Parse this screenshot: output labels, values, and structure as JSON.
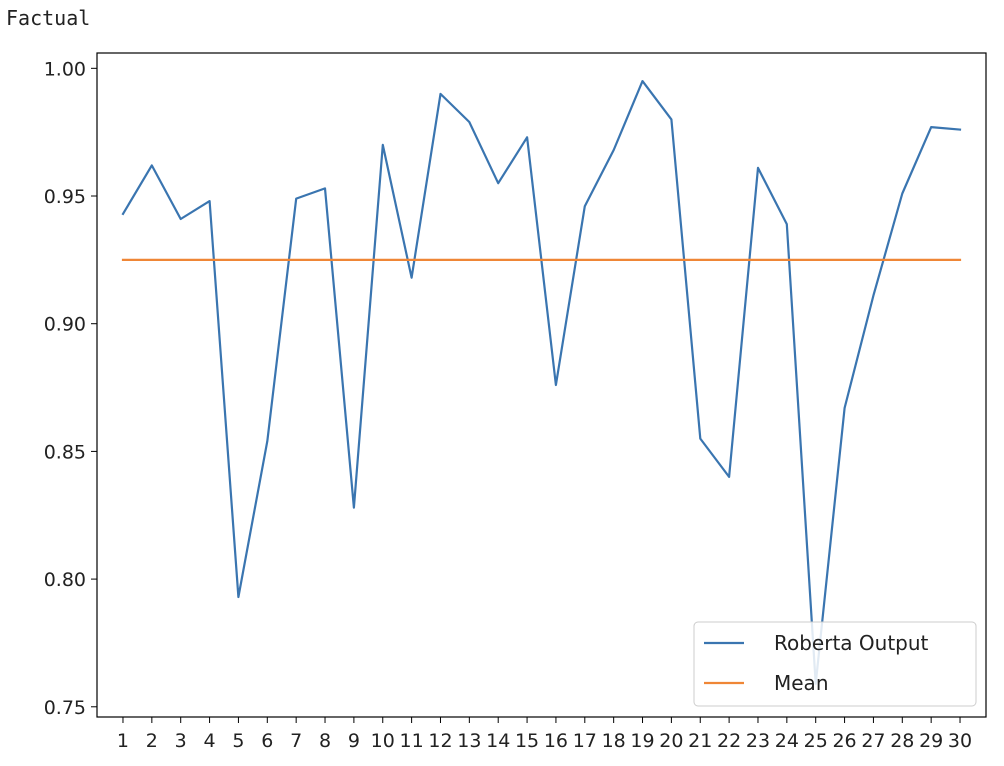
{
  "page_label": "Factual",
  "chart_data": {
    "type": "line",
    "title": "",
    "xlabel": "",
    "ylabel": "",
    "x": [
      1,
      2,
      3,
      4,
      5,
      6,
      7,
      8,
      9,
      10,
      11,
      12,
      13,
      14,
      15,
      16,
      17,
      18,
      19,
      20,
      21,
      22,
      23,
      24,
      25,
      26,
      27,
      28,
      29,
      30
    ],
    "xticks": [
      "1",
      "2",
      "3",
      "4",
      "5",
      "6",
      "7",
      "8",
      "9",
      "10",
      "11",
      "12",
      "13",
      "14",
      "15",
      "16",
      "17",
      "18",
      "19",
      "20",
      "21",
      "22",
      "23",
      "24",
      "25",
      "26",
      "27",
      "28",
      "29",
      "30"
    ],
    "yticks": [
      "0.75",
      "0.80",
      "0.85",
      "0.90",
      "0.95",
      "1.00"
    ],
    "xlim": [
      0.1,
      30.9
    ],
    "ylim": [
      0.746,
      1.006
    ],
    "grid": false,
    "legend_position": "lower right",
    "series": [
      {
        "name": "Roberta Output",
        "color": "#3a75b0",
        "values": [
          0.943,
          0.962,
          0.941,
          0.948,
          0.793,
          0.854,
          0.949,
          0.953,
          0.828,
          0.97,
          0.918,
          0.99,
          0.979,
          0.955,
          0.973,
          0.876,
          0.946,
          0.968,
          0.995,
          0.98,
          0.855,
          0.84,
          0.961,
          0.939,
          0.759,
          0.867,
          0.911,
          0.951,
          0.977,
          0.976
        ]
      },
      {
        "name": "Mean",
        "color": "#ef8636",
        "values": [
          0.925,
          0.925,
          0.925,
          0.925,
          0.925,
          0.925,
          0.925,
          0.925,
          0.925,
          0.925,
          0.925,
          0.925,
          0.925,
          0.925,
          0.925,
          0.925,
          0.925,
          0.925,
          0.925,
          0.925,
          0.925,
          0.925,
          0.925,
          0.925,
          0.925,
          0.925,
          0.925,
          0.925,
          0.925,
          0.925
        ]
      }
    ]
  }
}
